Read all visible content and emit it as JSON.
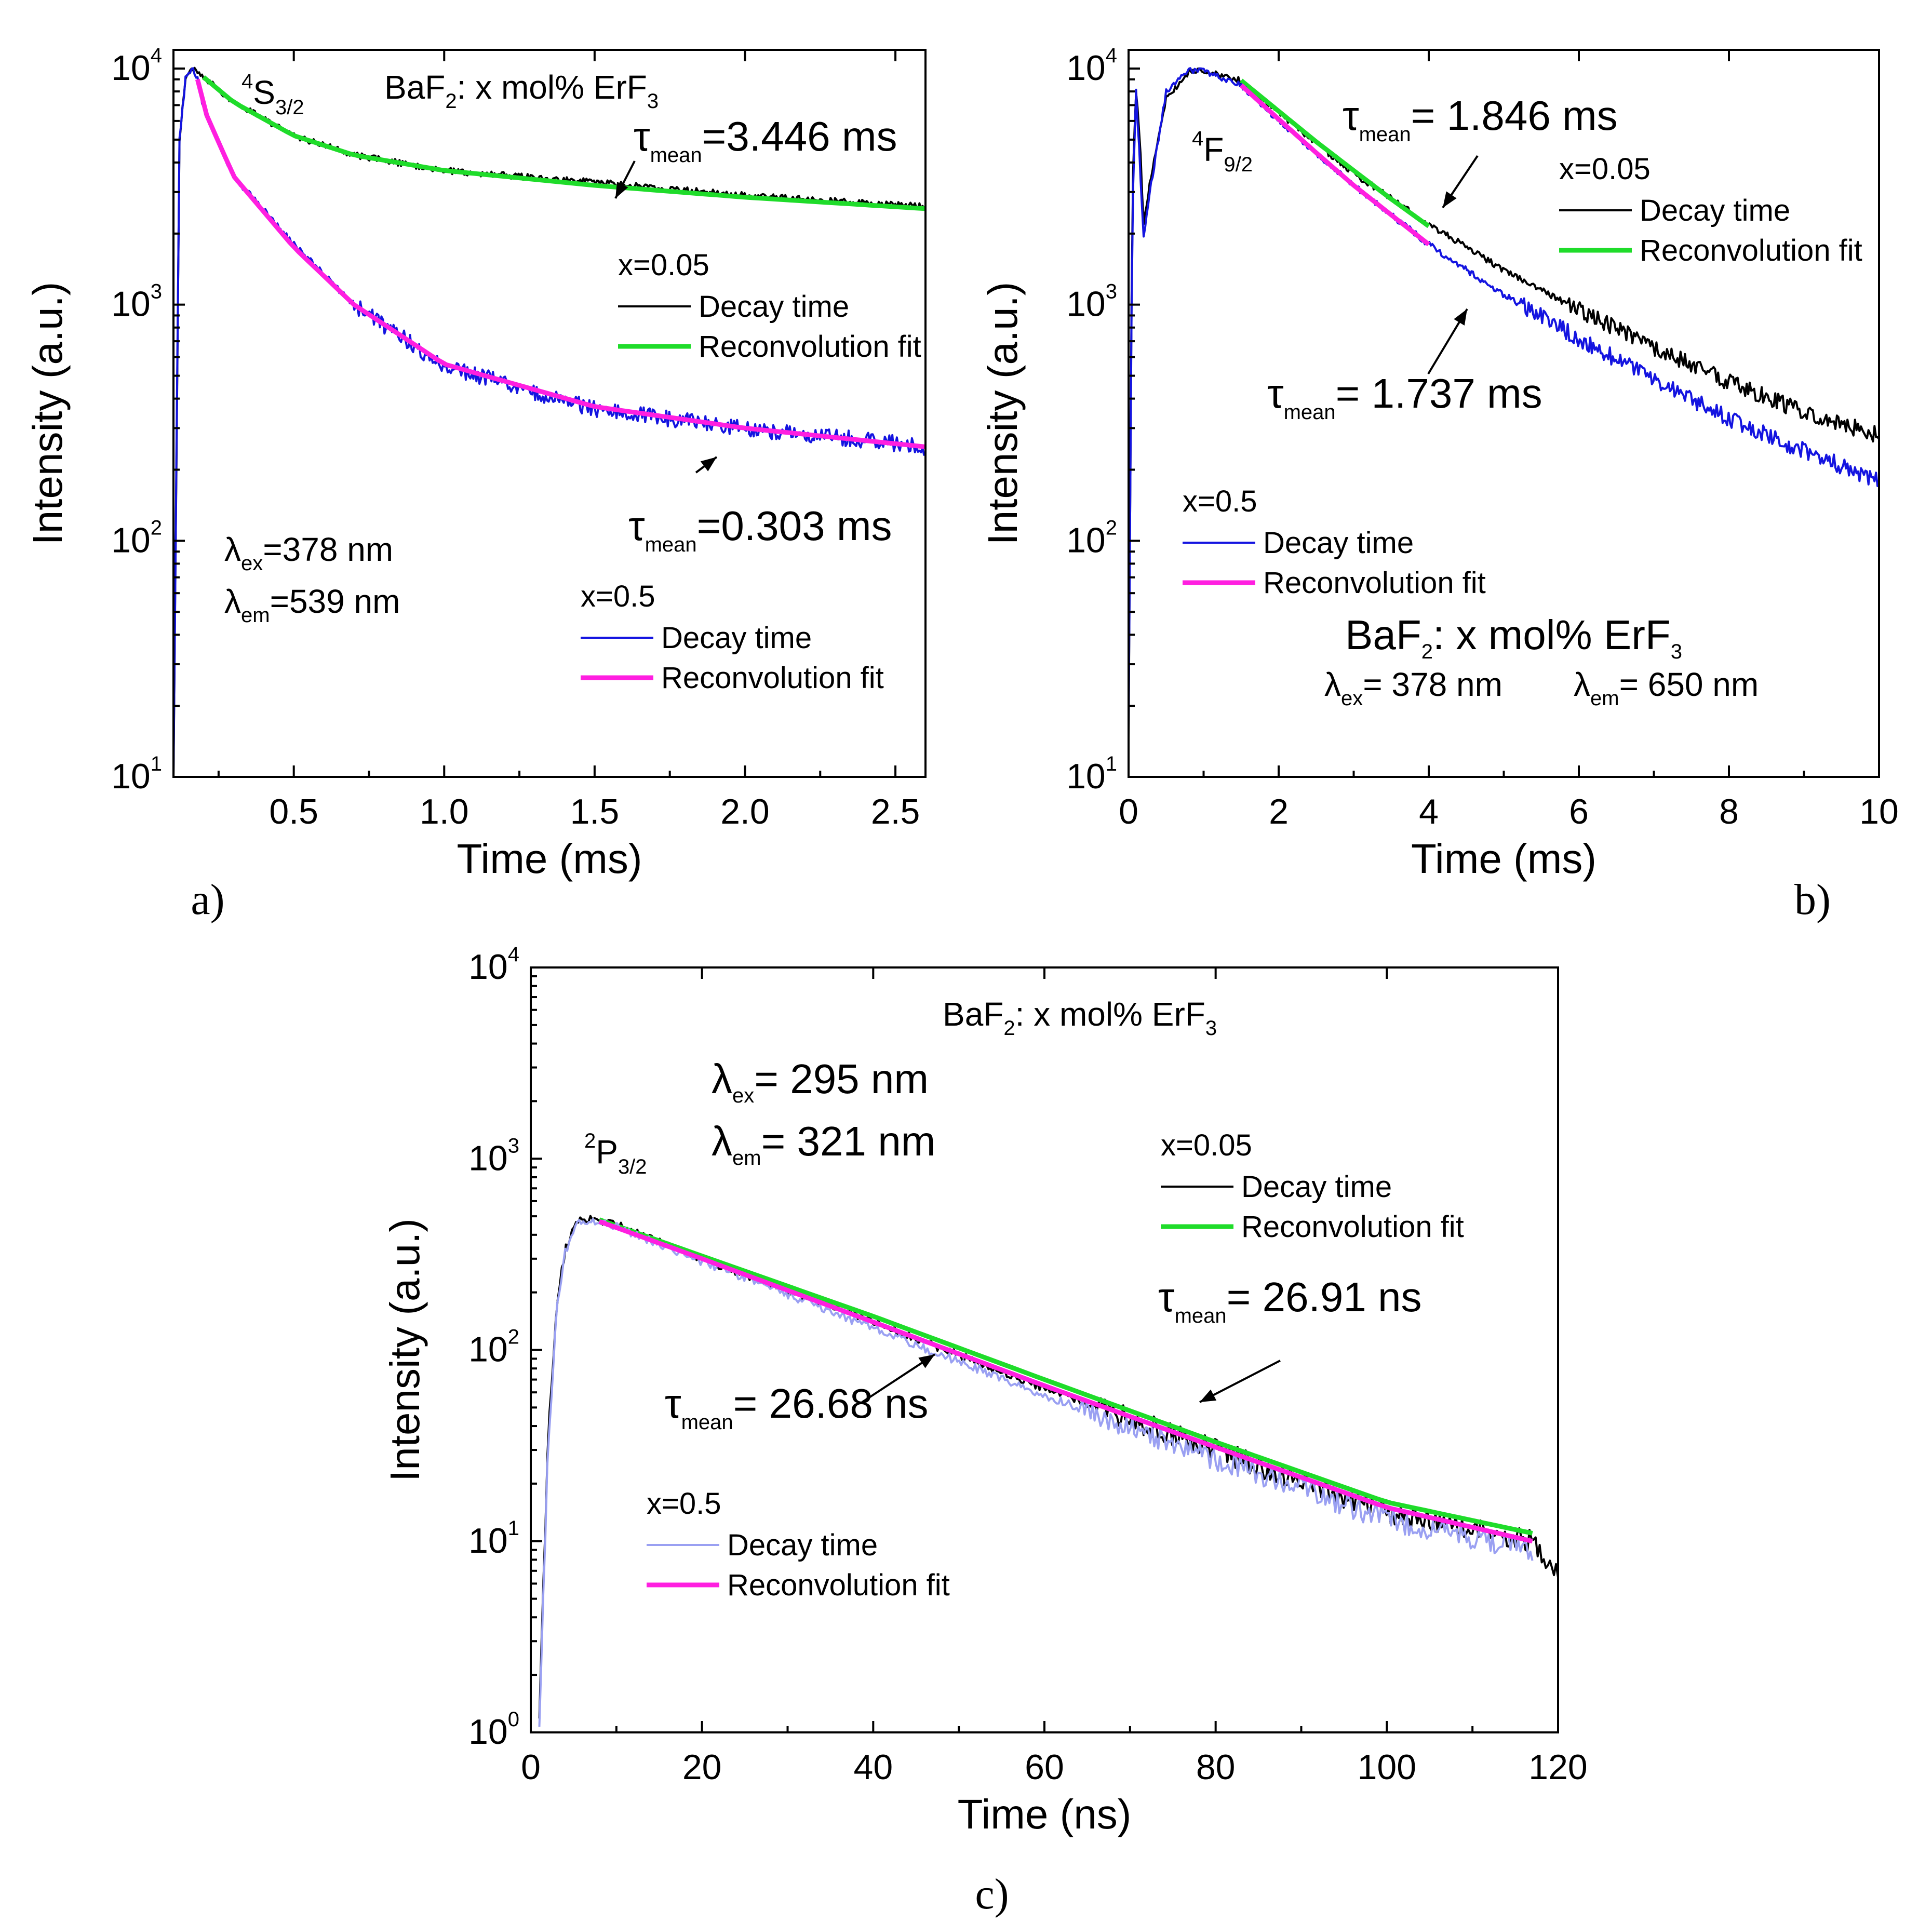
{
  "chart_data": [
    {
      "panel_label": "a)",
      "type": "line",
      "xlabel": "Time (ms)",
      "ylabel": "Intensity (a.u.)",
      "xlim": [
        0.1,
        2.6
      ],
      "ylim": [
        10,
        12000
      ],
      "y_scale": "log",
      "x_ticks": [
        "0.5",
        "1.0",
        "1.5",
        "2.0",
        "2.5"
      ],
      "x_tick_values": [
        0.5,
        1.0,
        1.5,
        2.0,
        2.5
      ],
      "y_ticks": [
        {
          "base": "10",
          "exp": "1",
          "value": 10
        },
        {
          "base": "10",
          "exp": "2",
          "value": 100
        },
        {
          "base": "10",
          "exp": "3",
          "value": 1000
        },
        {
          "base": "10",
          "exp": "4",
          "value": 10000
        }
      ],
      "annotations": {
        "level": {
          "sup": "4",
          "main": "S",
          "sub": "3/2"
        },
        "compound": {
          "a": "BaF",
          "b": "2",
          "c": ": x mol% ErF",
          "d": "3"
        },
        "tau1": {
          "sym": "τ",
          "sub": "mean",
          "val": "=3.446 ms"
        },
        "tau2": {
          "sym": "τ",
          "sub": "mean",
          "val": "=0.303 ms"
        },
        "lex": {
          "sym": "λ",
          "sub": "ex",
          "val": "=378 nm"
        },
        "lem": {
          "sym": "λ",
          "sub": "em",
          "val": "=539 nm"
        }
      },
      "legends": [
        {
          "title": "x=0.05",
          "decay": "Decay time",
          "fit": "Reconvolution fit",
          "decay_color": "#000000",
          "fit_color": "#1fdc2a"
        },
        {
          "title": "x=0.5",
          "decay": "Decay time",
          "fit": "Reconvolution fit",
          "decay_color": "#1414e0",
          "fit_color": "#ff1fe0"
        }
      ],
      "series": [
        {
          "name": "x=0.05 Decay time",
          "color": "#000000",
          "x": [
            0.1,
            0.12,
            0.14,
            0.16,
            0.18,
            0.2,
            0.3,
            0.5,
            0.7,
            1.0,
            1.5,
            2.0,
            2.6
          ],
          "y": [
            10,
            5000,
            9000,
            10000,
            9800,
            9200,
            7200,
            5200,
            4300,
            3700,
            3300,
            2900,
            2600
          ]
        },
        {
          "name": "x=0.05 Reconvolution fit",
          "color": "#1fdc2a",
          "x": [
            0.2,
            0.3,
            0.5,
            0.7,
            1.0,
            1.5,
            2.0,
            2.6
          ],
          "y": [
            9200,
            7200,
            5200,
            4300,
            3700,
            3200,
            2850,
            2550
          ]
        },
        {
          "name": "x=0.5 Decay time",
          "color": "#1414e0",
          "x": [
            0.1,
            0.12,
            0.14,
            0.16,
            0.18,
            0.2,
            0.3,
            0.5,
            0.7,
            1.0,
            1.5,
            2.0,
            2.6
          ],
          "y": [
            10,
            5000,
            9000,
            10000,
            9000,
            6800,
            3500,
            1800,
            1000,
            550,
            360,
            300,
            250
          ]
        },
        {
          "name": "x=0.5 Reconvolution fit",
          "color": "#ff1fe0",
          "x": [
            0.18,
            0.2,
            0.3,
            0.5,
            0.7,
            1.0,
            1.5,
            2.0,
            2.6
          ],
          "y": [
            9000,
            6800,
            3500,
            1750,
            1000,
            560,
            370,
            300,
            250
          ]
        }
      ]
    },
    {
      "panel_label": "b)",
      "type": "line",
      "xlabel": "Time (ms)",
      "ylabel": "Intensity (a.u.)",
      "xlim": [
        0,
        10
      ],
      "ylim": [
        10,
        12000
      ],
      "y_scale": "log",
      "x_ticks": [
        "0",
        "2",
        "4",
        "6",
        "8",
        "10"
      ],
      "x_tick_values": [
        0,
        2,
        4,
        6,
        8,
        10
      ],
      "y_ticks": [
        {
          "base": "10",
          "exp": "1",
          "value": 10
        },
        {
          "base": "10",
          "exp": "2",
          "value": 100
        },
        {
          "base": "10",
          "exp": "3",
          "value": 1000
        },
        {
          "base": "10",
          "exp": "4",
          "value": 10000
        }
      ],
      "annotations": {
        "level": {
          "sup": "4",
          "main": "F",
          "sub": "9/2"
        },
        "compound": {
          "a": "BaF",
          "b": "2",
          "c": ": x mol% ErF",
          "d": "3"
        },
        "tau1": {
          "sym": "τ",
          "sub": "mean",
          "val": "= 1.846 ms"
        },
        "tau2": {
          "sym": "τ",
          "sub": "mean",
          "val": "= 1.737 ms"
        },
        "lex": {
          "sym": "λ",
          "sub": "ex",
          "val": "= 378 nm"
        },
        "lem": {
          "sym": "λ",
          "sub": "em",
          "val": "= 650 nm"
        }
      },
      "legends": [
        {
          "title": "x=0.05",
          "decay": "Decay time",
          "fit": "Reconvolution fit",
          "decay_color": "#000000",
          "fit_color": "#1fdc2a"
        },
        {
          "title": "x=0.5",
          "decay": "Decay time",
          "fit": "Reconvolution fit",
          "decay_color": "#1414e0",
          "fit_color": "#ff1fe0"
        }
      ],
      "series": [
        {
          "name": "x=0.05 Decay time",
          "color": "#000000",
          "x": [
            0.0,
            0.05,
            0.1,
            0.15,
            0.2,
            0.3,
            0.5,
            0.8,
            1.0,
            1.5,
            2.0,
            3.0,
            4.0,
            5.0,
            6.0,
            7.0,
            8.0,
            9.0,
            10.0
          ],
          "y": [
            15,
            3000,
            8000,
            5000,
            2200,
            3500,
            7500,
            9600,
            9800,
            8900,
            6500,
            3600,
            2200,
            1400,
            950,
            660,
            470,
            350,
            280
          ]
        },
        {
          "name": "x=0.05 Reconvolution fit",
          "color": "#1fdc2a",
          "x": [
            1.5,
            2.0,
            2.5,
            3.0,
            3.5,
            4.0
          ],
          "y": [
            8900,
            6600,
            4900,
            3700,
            2800,
            2150
          ]
        },
        {
          "name": "x=0.5 Decay time",
          "color": "#1414e0",
          "x": [
            0.0,
            0.05,
            0.1,
            0.15,
            0.2,
            0.3,
            0.5,
            0.8,
            1.0,
            1.5,
            2.0,
            3.0,
            4.0,
            5.0,
            6.0,
            7.0,
            8.0,
            9.0,
            10.0
          ],
          "y": [
            15,
            2500,
            8000,
            4000,
            1900,
            3200,
            8000,
            9800,
            9700,
            8500,
            6000,
            3200,
            1800,
            1100,
            720,
            480,
            330,
            240,
            180
          ]
        },
        {
          "name": "x=0.5 Reconvolution fit",
          "color": "#ff1fe0",
          "x": [
            1.5,
            2.0,
            2.5,
            3.0,
            3.5,
            4.0
          ],
          "y": [
            8500,
            6100,
            4400,
            3200,
            2400,
            1800
          ]
        }
      ]
    },
    {
      "panel_label": "c)",
      "type": "line",
      "xlabel": "Time (ns)",
      "ylabel": "Intensity (a.u.)",
      "xlim": [
        0,
        120
      ],
      "ylim": [
        1,
        10000
      ],
      "y_scale": "log",
      "x_ticks": [
        "0",
        "20",
        "40",
        "60",
        "80",
        "100",
        "120"
      ],
      "x_tick_values": [
        0,
        20,
        40,
        60,
        80,
        100,
        120
      ],
      "y_ticks": [
        {
          "base": "10",
          "exp": "0",
          "value": 1
        },
        {
          "base": "10",
          "exp": "1",
          "value": 10
        },
        {
          "base": "10",
          "exp": "2",
          "value": 100
        },
        {
          "base": "10",
          "exp": "3",
          "value": 1000
        },
        {
          "base": "10",
          "exp": "4",
          "value": 10000
        }
      ],
      "annotations": {
        "level": {
          "sup": "2",
          "main": "P",
          "sub": "3/2"
        },
        "compound": {
          "a": "BaF",
          "b": "2",
          "c": ": x mol% ErF",
          "d": "3"
        },
        "tau1": {
          "sym": "τ",
          "sub": "mean",
          "val": "= 26.91 ns"
        },
        "tau2": {
          "sym": "τ",
          "sub": "mean",
          "val": "= 26.68 ns"
        },
        "lex": {
          "sym": "λ",
          "sub": "ex",
          "val": "= 295 nm"
        },
        "lem": {
          "sym": "λ",
          "sub": "em",
          "val": "= 321 nm"
        }
      },
      "legends": [
        {
          "title": "x=0.05",
          "decay": "Decay time",
          "fit": "Reconvolution fit",
          "decay_color": "#000000",
          "fit_color": "#1fdc2a"
        },
        {
          "title": "x=0.5",
          "decay": "Decay time",
          "fit": "Reconvolution fit",
          "decay_color": "#9aa0f2",
          "fit_color": "#ff1fe0"
        }
      ],
      "series": [
        {
          "name": "x=0.05 Decay time",
          "color": "#000000",
          "x": [
            1.0,
            2.0,
            3.0,
            4.0,
            5.0,
            6.0,
            8.0,
            10.0,
            20.0,
            40.0,
            60.0,
            80.0,
            100.0,
            117.0,
            120.0
          ],
          "y": [
            1.2,
            30,
            170,
            330,
            440,
            480,
            480,
            450,
            300,
            140,
            63,
            30,
            14,
            10,
            7
          ]
        },
        {
          "name": "x=0.05 Reconvolution fit",
          "color": "#1fdc2a",
          "x": [
            8.0,
            20.0,
            40.0,
            60.0,
            80.0,
            100.0,
            117.0
          ],
          "y": [
            480,
            310,
            150,
            70,
            33,
            16,
            11
          ]
        },
        {
          "name": "x=0.5 Decay time",
          "color": "#9aa0f2",
          "x": [
            1.0,
            2.0,
            3.0,
            4.0,
            5.0,
            6.0,
            8.0,
            10.0,
            20.0,
            40.0,
            60.0,
            80.0,
            100.0,
            117.0
          ],
          "y": [
            1.2,
            28,
            160,
            320,
            430,
            470,
            470,
            440,
            290,
            130,
            58,
            27,
            13,
            9
          ]
        },
        {
          "name": "x=0.5 Reconvolution fit",
          "color": "#ff1fe0",
          "x": [
            8.0,
            20.0,
            40.0,
            60.0,
            80.0,
            100.0,
            117.0
          ],
          "y": [
            470,
            300,
            140,
            65,
            31,
            15,
            10
          ]
        }
      ]
    }
  ]
}
